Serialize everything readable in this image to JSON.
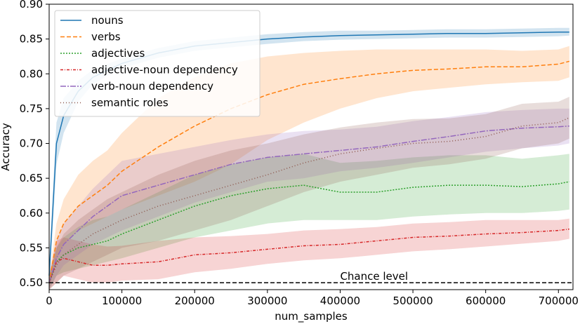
{
  "chart_data": {
    "type": "line",
    "xlabel": "num_samples",
    "ylabel": "Accuracy",
    "xlim": [
      0,
      720000
    ],
    "ylim": [
      0.49,
      0.9
    ],
    "xticks": [
      0,
      100000,
      200000,
      300000,
      400000,
      500000,
      600000,
      700000
    ],
    "yticks": [
      0.5,
      0.55,
      0.6,
      0.65,
      0.7,
      0.75,
      0.8,
      0.85,
      0.9
    ],
    "grid": false,
    "legend_position": "top-left",
    "annotations": [
      {
        "text": "Chance level",
        "x": 400000,
        "y": 0.5,
        "style": "dashed",
        "color": "#000000"
      }
    ],
    "x": [
      0,
      10000,
      20000,
      40000,
      60000,
      80000,
      100000,
      150000,
      200000,
      250000,
      300000,
      350000,
      400000,
      450000,
      500000,
      550000,
      600000,
      650000,
      700000,
      715000
    ],
    "series": [
      {
        "name": "nouns",
        "color": "#1f77b4",
        "dash": "solid",
        "values": [
          0.51,
          0.7,
          0.74,
          0.775,
          0.795,
          0.805,
          0.815,
          0.83,
          0.84,
          0.845,
          0.85,
          0.853,
          0.855,
          0.856,
          0.857,
          0.858,
          0.858,
          0.859,
          0.86,
          0.86
        ],
        "lower": [
          0.49,
          0.67,
          0.715,
          0.76,
          0.785,
          0.797,
          0.808,
          0.823,
          0.833,
          0.838,
          0.843,
          0.847,
          0.849,
          0.85,
          0.851,
          0.852,
          0.852,
          0.853,
          0.854,
          0.855
        ],
        "upper": [
          0.53,
          0.73,
          0.765,
          0.79,
          0.806,
          0.814,
          0.822,
          0.837,
          0.847,
          0.852,
          0.857,
          0.86,
          0.862,
          0.862,
          0.863,
          0.864,
          0.864,
          0.865,
          0.866,
          0.866
        ]
      },
      {
        "name": "verbs",
        "color": "#ff7f0e",
        "dash": "6,3",
        "values": [
          0.5,
          0.56,
          0.585,
          0.61,
          0.625,
          0.64,
          0.66,
          0.695,
          0.725,
          0.75,
          0.77,
          0.785,
          0.793,
          0.8,
          0.805,
          0.807,
          0.81,
          0.81,
          0.814,
          0.818
        ],
        "lower": [
          0.49,
          0.535,
          0.555,
          0.575,
          0.585,
          0.595,
          0.605,
          0.625,
          0.645,
          0.67,
          0.705,
          0.73,
          0.75,
          0.765,
          0.775,
          0.78,
          0.785,
          0.788,
          0.79,
          0.795
        ],
        "upper": [
          0.51,
          0.585,
          0.62,
          0.655,
          0.675,
          0.69,
          0.715,
          0.765,
          0.795,
          0.815,
          0.825,
          0.83,
          0.833,
          0.835,
          0.835,
          0.835,
          0.835,
          0.833,
          0.835,
          0.84
        ]
      },
      {
        "name": "adjectives",
        "color": "#2ca02c",
        "dash": "2,2",
        "values": [
          0.5,
          0.53,
          0.54,
          0.55,
          0.555,
          0.56,
          0.57,
          0.59,
          0.61,
          0.625,
          0.635,
          0.64,
          0.63,
          0.63,
          0.637,
          0.64,
          0.64,
          0.638,
          0.642,
          0.645
        ],
        "lower": [
          0.49,
          0.51,
          0.515,
          0.52,
          0.525,
          0.53,
          0.535,
          0.55,
          0.565,
          0.575,
          0.585,
          0.59,
          0.59,
          0.59,
          0.595,
          0.598,
          0.6,
          0.6,
          0.603,
          0.605
        ],
        "upper": [
          0.51,
          0.55,
          0.565,
          0.58,
          0.59,
          0.595,
          0.605,
          0.63,
          0.655,
          0.67,
          0.68,
          0.685,
          0.672,
          0.675,
          0.68,
          0.683,
          0.683,
          0.678,
          0.683,
          0.685
        ]
      },
      {
        "name": "adjective-noun dependency",
        "color": "#d62728",
        "dash": "4,2,1,2",
        "values": [
          0.5,
          0.53,
          0.535,
          0.53,
          0.525,
          0.525,
          0.527,
          0.53,
          0.54,
          0.543,
          0.548,
          0.553,
          0.555,
          0.56,
          0.565,
          0.567,
          0.57,
          0.572,
          0.575,
          0.577
        ],
        "lower": [
          0.49,
          0.5,
          0.51,
          0.505,
          0.5,
          0.5,
          0.503,
          0.505,
          0.515,
          0.52,
          0.527,
          0.532,
          0.535,
          0.54,
          0.545,
          0.548,
          0.552,
          0.556,
          0.56,
          0.563
        ],
        "upper": [
          0.51,
          0.56,
          0.565,
          0.56,
          0.555,
          0.552,
          0.553,
          0.56,
          0.565,
          0.567,
          0.57,
          0.575,
          0.577,
          0.58,
          0.585,
          0.587,
          0.59,
          0.59,
          0.59,
          0.592
        ]
      },
      {
        "name": "verb-noun dependency",
        "color": "#9467bd",
        "dash": "8,2,2,2",
        "values": [
          0.5,
          0.535,
          0.555,
          0.575,
          0.595,
          0.61,
          0.625,
          0.64,
          0.655,
          0.67,
          0.68,
          0.685,
          0.69,
          0.695,
          0.703,
          0.71,
          0.718,
          0.722,
          0.724,
          0.725
        ],
        "lower": [
          0.49,
          0.51,
          0.525,
          0.54,
          0.555,
          0.565,
          0.575,
          0.595,
          0.615,
          0.63,
          0.645,
          0.65,
          0.66,
          0.665,
          0.672,
          0.68,
          0.688,
          0.693,
          0.697,
          0.7
        ],
        "upper": [
          0.51,
          0.56,
          0.585,
          0.61,
          0.635,
          0.655,
          0.675,
          0.685,
          0.695,
          0.705,
          0.713,
          0.718,
          0.72,
          0.724,
          0.732,
          0.738,
          0.745,
          0.748,
          0.75,
          0.75
        ]
      },
      {
        "name": "semantic roles",
        "color": "#8c564b",
        "dash": "1,3",
        "values": [
          0.5,
          0.525,
          0.54,
          0.555,
          0.57,
          0.58,
          0.59,
          0.61,
          0.625,
          0.64,
          0.655,
          0.672,
          0.685,
          0.693,
          0.7,
          0.703,
          0.71,
          0.725,
          0.73,
          0.737
        ],
        "lower": [
          0.49,
          0.5,
          0.51,
          0.52,
          0.53,
          0.54,
          0.55,
          0.56,
          0.575,
          0.59,
          0.61,
          0.63,
          0.645,
          0.655,
          0.665,
          0.67,
          0.678,
          0.693,
          0.7,
          0.707
        ],
        "upper": [
          0.51,
          0.55,
          0.57,
          0.59,
          0.605,
          0.62,
          0.63,
          0.655,
          0.675,
          0.69,
          0.7,
          0.713,
          0.723,
          0.73,
          0.735,
          0.736,
          0.742,
          0.757,
          0.76,
          0.767
        ]
      }
    ]
  }
}
